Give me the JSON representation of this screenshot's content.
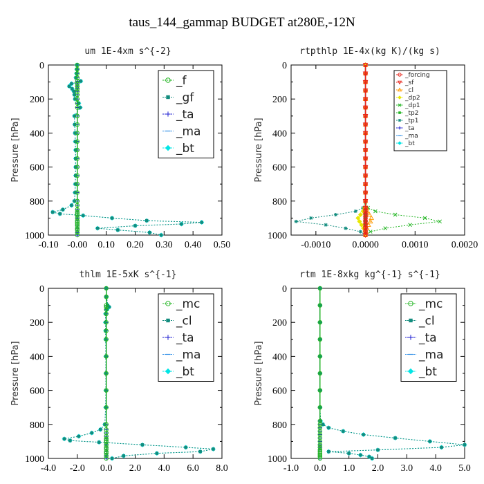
{
  "figure": {
    "title": "taus_144_gammap  BUDGET at280E,-12N",
    "ylabel": "Pressure [hPa]"
  },
  "colors": {
    "red": "#e8241a",
    "orange": "#ff9900",
    "yellow": "#e8e800",
    "green": "#22b522",
    "darkgreen": "#128c7e",
    "blue": "#1a1ad0",
    "skyblue": "#2a8ce6",
    "cyan": "#00e5e5"
  },
  "chart_data": [
    {
      "type": "line",
      "title": "um   1E-4xm s^{-2}",
      "xlim": [
        -0.1,
        0.5
      ],
      "xticks": [
        "-0.10",
        "-0.00",
        "0.10",
        "0.20",
        "0.30",
        "0.40",
        "0.50"
      ],
      "ylim": [
        1000,
        0
      ],
      "yticks": [
        "0",
        "200",
        "400",
        "600",
        "800",
        "1000"
      ],
      "legend_position": "top-right",
      "legend_style": "large",
      "p": [
        0,
        25,
        50,
        75,
        95,
        110,
        125,
        140,
        155,
        175,
        200,
        225,
        250,
        300,
        350,
        400,
        450,
        500,
        550,
        600,
        650,
        700,
        750,
        800,
        825,
        850,
        865,
        875,
        885,
        900,
        915,
        925,
        935,
        945,
        960,
        970,
        985,
        1000
      ],
      "series": [
        {
          "name": "_f",
          "color": "green",
          "marker": "o",
          "values": [
            0,
            0,
            0,
            0,
            0,
            0,
            0,
            0,
            0,
            0,
            0,
            0,
            0,
            0,
            0,
            0,
            0,
            0,
            0,
            0,
            0,
            0,
            0,
            0,
            0,
            0,
            0,
            0,
            0,
            0,
            0,
            0,
            0,
            0,
            0,
            0,
            0,
            0
          ]
        },
        {
          "name": "_gf",
          "color": "darkgreen",
          "marker": "s",
          "values": [
            -0.002,
            -0.002,
            -0.003,
            -0.005,
            0.012,
            -0.02,
            -0.028,
            -0.018,
            -0.012,
            -0.01,
            -0.008,
            0.005,
            0.01,
            -0.01,
            -0.009,
            -0.008,
            -0.007,
            -0.006,
            -0.006,
            -0.006,
            -0.006,
            -0.007,
            -0.008,
            -0.01,
            -0.02,
            -0.05,
            -0.085,
            -0.06,
            0.02,
            0.12,
            0.24,
            0.43,
            0.36,
            0.2,
            0.07,
            0.14,
            0.25,
            0.29
          ]
        },
        {
          "name": "_ta",
          "color": "blue",
          "marker": "+",
          "values": [
            0,
            0,
            0,
            0,
            0,
            0,
            0,
            0,
            0,
            0,
            0,
            0,
            0,
            0,
            0,
            0,
            0,
            0,
            0,
            0,
            0,
            0,
            0,
            0,
            0,
            0,
            0,
            0,
            0,
            0,
            0,
            0,
            0,
            0,
            0,
            0,
            0,
            0
          ]
        },
        {
          "name": "_ma",
          "color": "skyblue",
          "marker": "-",
          "values": [
            0,
            0,
            0,
            0,
            0,
            0,
            0,
            0,
            0,
            0,
            0,
            0,
            0,
            0,
            0,
            0,
            0,
            0,
            0,
            0,
            0,
            0,
            0,
            0,
            0,
            0,
            0,
            0,
            0,
            0,
            0,
            0,
            0,
            0,
            0,
            0,
            0,
            0
          ]
        },
        {
          "name": "_bt",
          "color": "cyan",
          "marker": "d",
          "values": [
            -0.002,
            -0.002,
            -0.003,
            -0.005,
            0.012,
            -0.02,
            -0.028,
            -0.018,
            -0.012,
            -0.01,
            -0.008,
            0.005,
            0.01,
            -0.01,
            -0.009,
            -0.008,
            -0.007,
            -0.006,
            -0.006,
            -0.006,
            -0.006,
            -0.007,
            -0.008,
            -0.01,
            -0.02,
            -0.05,
            -0.085,
            -0.06,
            0.02,
            0.12,
            0.24,
            0.43,
            0.36,
            0.2,
            0.07,
            0.14,
            0.25,
            0.29
          ]
        }
      ]
    },
    {
      "type": "line",
      "title": "rtpthlp   1E-4x(kg K)/(kg s)",
      "xlim": [
        -0.0015,
        0.002
      ],
      "xticks": [
        "-0.0010",
        "0.0000",
        "0.0010",
        "0.0020"
      ],
      "xtick_values": [
        -0.001,
        0,
        0.001,
        0.002
      ],
      "ylim": [
        1000,
        0
      ],
      "yticks": [
        "0",
        "200",
        "400",
        "600",
        "800",
        "1000"
      ],
      "legend_position": "top-right",
      "legend_style": "small",
      "p": [
        0,
        50,
        100,
        150,
        200,
        250,
        300,
        350,
        400,
        450,
        500,
        550,
        600,
        650,
        700,
        750,
        800,
        840,
        860,
        880,
        900,
        920,
        940,
        960,
        980,
        1000
      ],
      "series": [
        {
          "name": "_forcing",
          "color": "red",
          "marker": "o",
          "values": [
            0,
            0,
            0,
            0,
            0,
            0,
            0,
            0,
            0,
            0,
            0,
            0,
            0,
            0,
            0,
            0,
            0,
            0,
            0,
            0,
            0,
            0,
            0,
            0,
            0,
            0
          ]
        },
        {
          "name": "_sf",
          "color": "red",
          "marker": "v",
          "values": [
            0,
            0,
            0,
            0,
            0,
            0,
            0,
            0,
            0,
            0,
            0,
            0,
            0,
            0,
            0,
            0,
            0,
            0,
            0,
            0,
            0,
            0,
            0,
            0,
            0,
            0
          ]
        },
        {
          "name": "_cl",
          "color": "orange",
          "marker": "^",
          "values": [
            0,
            0,
            0,
            0,
            0,
            0,
            0,
            0,
            0,
            0,
            0,
            0,
            0,
            0,
            0,
            0,
            0,
            2e-05,
            4e-05,
            8e-05,
            0.00012,
            0.0001,
            6e-05,
            3e-05,
            1e-05,
            0
          ]
        },
        {
          "name": "_dp2",
          "color": "yellow",
          "marker": "d",
          "values": [
            0,
            0,
            0,
            0,
            0,
            0,
            0,
            0,
            0,
            0,
            0,
            0,
            0,
            0,
            0,
            0,
            0,
            -2e-05,
            -5e-05,
            -0.0001,
            -0.00015,
            -0.00012,
            -8e-05,
            -4e-05,
            -1e-05,
            0
          ]
        },
        {
          "name": "_dp1",
          "color": "green",
          "marker": "x",
          "values": [
            0,
            0,
            0,
            0,
            0,
            0,
            0,
            0,
            0,
            0,
            0,
            0,
            0,
            0,
            0,
            0,
            0,
            5e-05,
            0.0002,
            0.0006,
            0.0012,
            0.0015,
            0.0009,
            0.0004,
            0.0001,
            0
          ]
        },
        {
          "name": "_tp2",
          "color": "green",
          "marker": "s",
          "values": [
            0,
            0,
            0,
            0,
            0,
            0,
            0,
            0,
            0,
            0,
            0,
            0,
            0,
            0,
            0,
            0,
            0,
            0,
            0,
            0,
            0,
            0,
            0,
            0,
            0,
            0
          ]
        },
        {
          "name": "_tp1",
          "color": "darkgreen",
          "marker": "*",
          "values": [
            0,
            0,
            0,
            0,
            0,
            0,
            0,
            0,
            0,
            0,
            0,
            0,
            0,
            0,
            0,
            0,
            0,
            -5e-05,
            -0.0002,
            -0.0006,
            -0.0011,
            -0.0014,
            -0.0008,
            -0.0004,
            -0.0001,
            0
          ]
        },
        {
          "name": "_ta",
          "color": "blue",
          "marker": "+",
          "values": [
            0,
            0,
            0,
            0,
            0,
            0,
            0,
            0,
            0,
            0,
            0,
            0,
            0,
            0,
            0,
            0,
            0,
            0,
            0,
            0,
            0,
            0,
            0,
            0,
            0,
            0
          ]
        },
        {
          "name": "_ma",
          "color": "skyblue",
          "marker": "-",
          "values": [
            0,
            0,
            0,
            0,
            0,
            0,
            0,
            0,
            0,
            0,
            0,
            0,
            0,
            0,
            0,
            0,
            0,
            0,
            0,
            0,
            0,
            0,
            0,
            0,
            0,
            0
          ]
        },
        {
          "name": "_bt",
          "color": "cyan",
          "marker": "d",
          "values": [
            0,
            0,
            0,
            0,
            0,
            0,
            0,
            0,
            0,
            0,
            0,
            0,
            0,
            0,
            0,
            0,
            0,
            0,
            0,
            0,
            0,
            0,
            0,
            0,
            0,
            0
          ]
        }
      ]
    },
    {
      "type": "line",
      "title": "thlm   1E-5xK s^{-1}",
      "xlim": [
        -4.0,
        8.0
      ],
      "xticks": [
        "-4.0",
        "-2.0",
        "0.0",
        "2.0",
        "4.0",
        "6.0",
        "8.0"
      ],
      "ylim": [
        1000,
        0
      ],
      "yticks": [
        "0",
        "200",
        "400",
        "600",
        "800",
        "1000"
      ],
      "legend_position": "top-right",
      "legend_style": "large",
      "p": [
        0,
        50,
        100,
        110,
        125,
        150,
        200,
        250,
        300,
        400,
        500,
        600,
        700,
        800,
        830,
        850,
        870,
        885,
        895,
        905,
        920,
        935,
        945,
        960,
        970,
        985,
        1000
      ],
      "series": [
        {
          "name": "_mc",
          "color": "green",
          "marker": "o",
          "values": [
            0,
            0,
            0,
            0,
            0,
            0,
            0,
            0,
            0,
            0,
            0,
            0,
            0,
            0,
            0,
            0,
            0,
            0,
            0,
            0,
            0,
            0,
            0,
            0,
            0,
            0,
            0
          ]
        },
        {
          "name": "_cl",
          "color": "darkgreen",
          "marker": "s",
          "values": [
            0,
            0.02,
            0.1,
            0.2,
            0.05,
            -0.05,
            -0.06,
            -0.05,
            -0.04,
            -0.03,
            -0.03,
            -0.03,
            -0.04,
            -0.1,
            -0.4,
            -1.0,
            -1.9,
            -2.9,
            -2.5,
            -0.5,
            2.5,
            5.5,
            7.4,
            6.5,
            3.5,
            1.2,
            0.4
          ]
        },
        {
          "name": "_ta",
          "color": "blue",
          "marker": "+",
          "values": [
            0,
            0,
            0,
            0,
            0,
            0,
            0,
            0,
            0,
            0,
            0,
            0,
            0,
            0,
            0,
            0,
            0,
            0,
            0,
            0,
            0,
            0,
            0,
            0,
            0,
            0,
            0
          ]
        },
        {
          "name": "_ma",
          "color": "skyblue",
          "marker": "-",
          "values": [
            0,
            0,
            0,
            0,
            0,
            0,
            0,
            0,
            0,
            0,
            0,
            0,
            0,
            0,
            0,
            0,
            0,
            0,
            0,
            0,
            0,
            0,
            0,
            0,
            0,
            0,
            0
          ]
        },
        {
          "name": "_bt",
          "color": "cyan",
          "marker": "d",
          "values": [
            0,
            0.02,
            0.1,
            0.2,
            0.05,
            -0.05,
            -0.06,
            -0.05,
            -0.04,
            -0.03,
            -0.03,
            -0.03,
            -0.04,
            -0.1,
            -0.4,
            -1.0,
            -1.9,
            -2.9,
            -2.5,
            -0.5,
            2.5,
            5.5,
            7.4,
            6.5,
            3.5,
            1.2,
            0.4
          ]
        }
      ]
    },
    {
      "type": "line",
      "title": "rtm   1E-8xkg kg^{-1} s^{-1}",
      "xlim": [
        -1.0,
        5.0
      ],
      "xticks": [
        "-1.0",
        "0.0",
        "1.0",
        "2.0",
        "3.0",
        "4.0",
        "5.0"
      ],
      "ylim": [
        1000,
        0
      ],
      "yticks": [
        "0",
        "200",
        "400",
        "600",
        "800",
        "1000"
      ],
      "legend_position": "top-right",
      "legend_style": "large",
      "p": [
        0,
        100,
        200,
        300,
        400,
        500,
        600,
        700,
        780,
        800,
        820,
        840,
        860,
        880,
        900,
        920,
        935,
        950,
        960,
        970,
        980,
        990,
        1000
      ],
      "series": [
        {
          "name": "_mc",
          "color": "green",
          "marker": "o",
          "values": [
            0,
            0,
            0,
            0,
            0,
            0,
            0,
            0,
            0,
            0,
            0,
            0,
            0,
            0,
            0,
            0,
            0,
            0,
            0,
            0,
            0,
            0,
            0
          ]
        },
        {
          "name": "_cl",
          "color": "darkgreen",
          "marker": "s",
          "values": [
            0,
            0,
            0,
            0,
            0,
            0,
            0,
            0,
            0.02,
            0.1,
            0.3,
            0.8,
            1.5,
            2.6,
            3.8,
            5.0,
            4.2,
            2.0,
            0.3,
            1.0,
            1.4,
            1.7,
            1.8
          ]
        },
        {
          "name": "_ta",
          "color": "blue",
          "marker": "+",
          "values": [
            0,
            0,
            0,
            0,
            0,
            0,
            0,
            0,
            0,
            0,
            0,
            0,
            0,
            0,
            0,
            0,
            0,
            0,
            0,
            0,
            0,
            0,
            0
          ]
        },
        {
          "name": "_ma",
          "color": "skyblue",
          "marker": "-",
          "values": [
            0,
            0,
            0,
            0,
            0,
            0,
            0,
            0,
            0,
            0,
            0,
            0,
            0,
            0,
            0,
            0,
            0,
            0,
            0,
            0,
            0,
            0,
            0
          ]
        },
        {
          "name": "_bt",
          "color": "cyan",
          "marker": "d",
          "values": [
            0,
            0,
            0,
            0,
            0,
            0,
            0,
            0,
            0.02,
            0.1,
            0.3,
            0.8,
            1.5,
            2.6,
            3.8,
            5.0,
            4.2,
            2.0,
            0.3,
            1.0,
            1.4,
            1.7,
            1.8
          ]
        }
      ]
    }
  ]
}
